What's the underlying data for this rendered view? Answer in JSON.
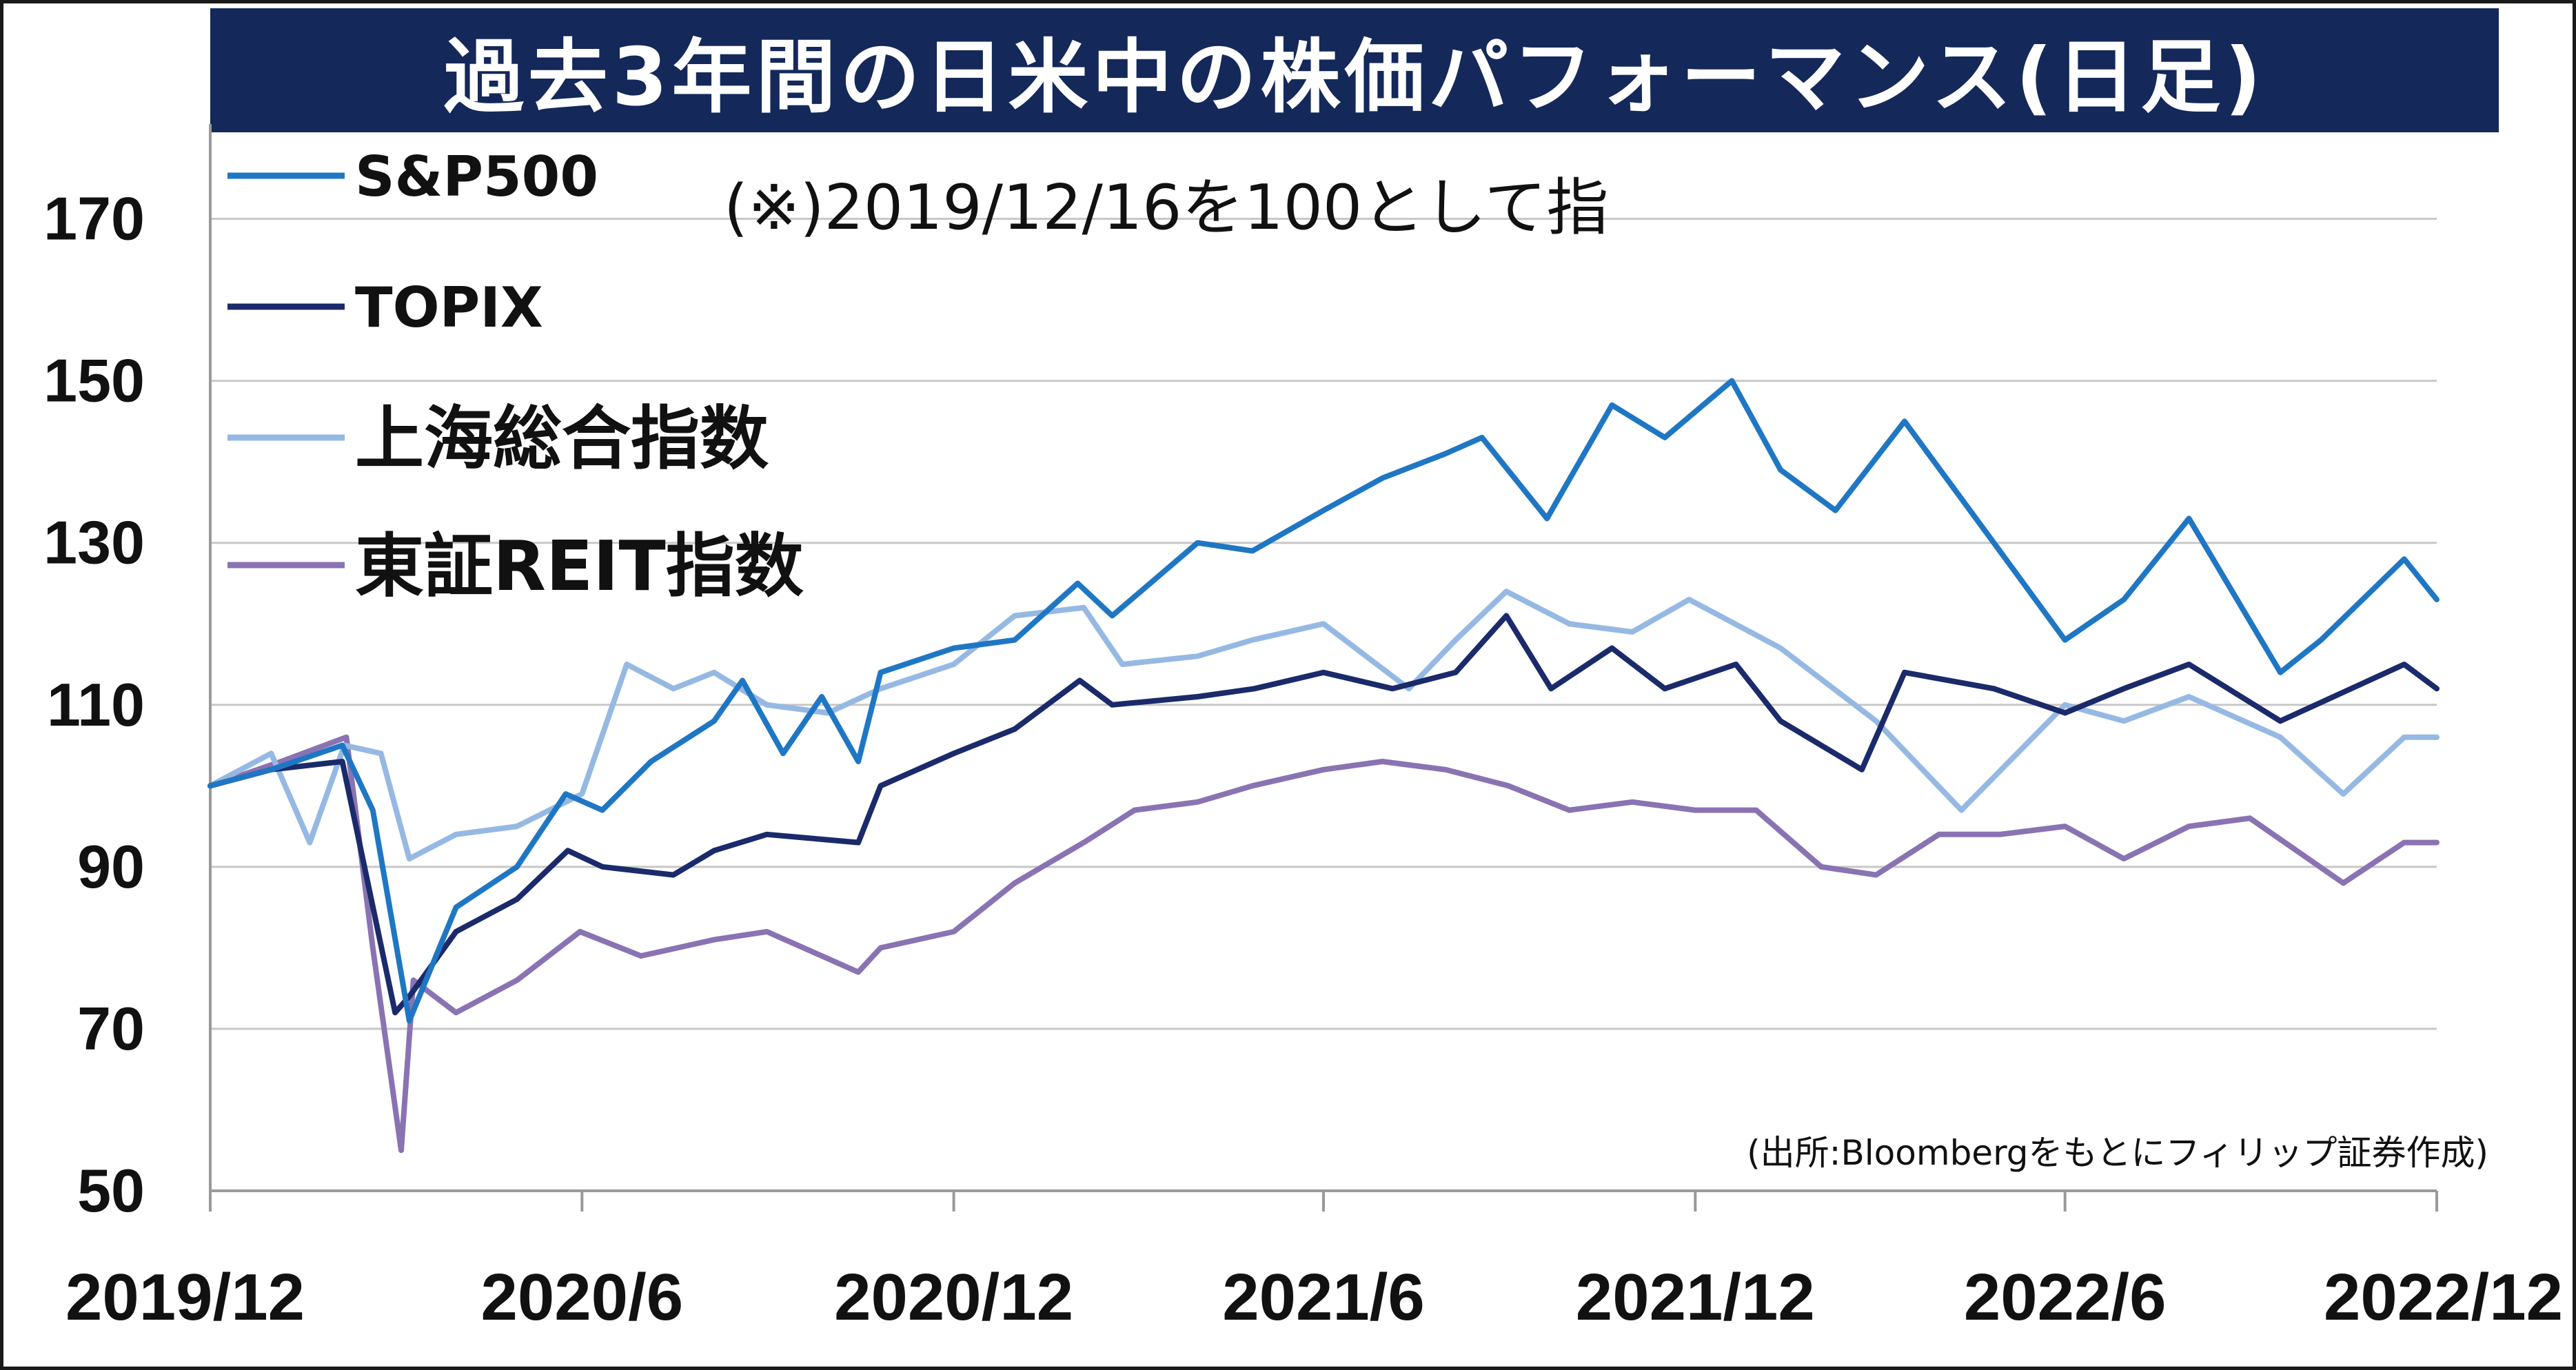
{
  "chart_data": {
    "type": "line",
    "title": "過去3年間の日米中の株価パフォーマンス(日足)",
    "annotation": "(※)2019/12/16を100として指",
    "source": "(出所:Bloombergをもとにフィリップ証券作成)",
    "xlabel": "",
    "ylabel": "",
    "ylim": [
      50,
      180
    ],
    "yticks": [
      "170",
      "150",
      "130",
      "110",
      "90",
      "70",
      "50"
    ],
    "ytick_values": [
      170,
      150,
      130,
      110,
      90,
      70,
      50
    ],
    "xticks": [
      "2019/12",
      "2020/6",
      "2020/12",
      "2021/6",
      "2021/12",
      "2022/6",
      "2022/12"
    ],
    "xtick_values": [
      "2019-12-16",
      "2020-06-16",
      "2020-12-16",
      "2021-06-16",
      "2021-12-16",
      "2022-06-16",
      "2022-12-16"
    ],
    "xlim": [
      "2019-12-16",
      "2022-12-16"
    ],
    "grid": true,
    "legend": "top-left",
    "series": [
      {
        "name": "S&P500",
        "color": "#1f77c4",
        "x": [
          "2019-12-16",
          "2020-01-15",
          "2020-02-19",
          "2020-03-05",
          "2020-03-23",
          "2020-04-15",
          "2020-05-15",
          "2020-06-08",
          "2020-06-26",
          "2020-07-20",
          "2020-08-20",
          "2020-09-03",
          "2020-09-23",
          "2020-10-12",
          "2020-10-30",
          "2020-11-10",
          "2020-12-16",
          "2021-01-15",
          "2021-02-15",
          "2021-03-04",
          "2021-04-15",
          "2021-05-12",
          "2021-06-16",
          "2021-07-15",
          "2021-08-15",
          "2021-09-02",
          "2021-10-04",
          "2021-11-05",
          "2021-12-01",
          "2022-01-03",
          "2022-01-27",
          "2022-02-23",
          "2022-03-29",
          "2022-05-12",
          "2022-06-16",
          "2022-07-15",
          "2022-08-16",
          "2022-09-30",
          "2022-10-20",
          "2022-11-30",
          "2022-12-16"
        ],
        "y": [
          100,
          102,
          105,
          97,
          71,
          85,
          90,
          99,
          97,
          103,
          108,
          113,
          104,
          111,
          103,
          114,
          117,
          118,
          125,
          121,
          130,
          129,
          134,
          138,
          141,
          143,
          133,
          147,
          143,
          150,
          139,
          134,
          145,
          130,
          118,
          123,
          133,
          114,
          118,
          128,
          123
        ]
      },
      {
        "name": "TOPIX",
        "color": "#1b2a6b",
        "x": [
          "2019-12-16",
          "2020-01-15",
          "2020-02-19",
          "2020-03-16",
          "2020-03-23",
          "2020-04-15",
          "2020-05-15",
          "2020-06-09",
          "2020-06-26",
          "2020-07-31",
          "2020-08-20",
          "2020-09-15",
          "2020-10-30",
          "2020-11-10",
          "2020-12-16",
          "2021-01-15",
          "2021-02-16",
          "2021-03-04",
          "2021-04-15",
          "2021-05-13",
          "2021-06-16",
          "2021-07-20",
          "2021-08-20",
          "2021-09-14",
          "2021-10-06",
          "2021-11-05",
          "2021-12-01",
          "2022-01-05",
          "2022-01-27",
          "2022-03-08",
          "2022-03-29",
          "2022-05-12",
          "2022-06-16",
          "2022-07-15",
          "2022-08-16",
          "2022-09-30",
          "2022-11-30",
          "2022-12-16"
        ],
        "y": [
          100,
          102,
          103,
          72,
          74,
          82,
          86,
          92,
          90,
          89,
          92,
          94,
          93,
          100,
          104,
          107,
          113,
          110,
          111,
          112,
          114,
          112,
          114,
          121,
          112,
          117,
          112,
          115,
          108,
          102,
          114,
          112,
          109,
          112,
          115,
          108,
          115,
          112
        ]
      },
      {
        "name": "上海総合指数",
        "color": "#96b9e3",
        "x": [
          "2019-12-16",
          "2020-01-15",
          "2020-02-03",
          "2020-02-20",
          "2020-03-09",
          "2020-03-23",
          "2020-04-15",
          "2020-05-15",
          "2020-06-16",
          "2020-07-08",
          "2020-07-31",
          "2020-08-20",
          "2020-09-15",
          "2020-10-15",
          "2020-11-10",
          "2020-12-16",
          "2021-01-15",
          "2021-02-18",
          "2021-03-09",
          "2021-04-15",
          "2021-05-12",
          "2021-06-16",
          "2021-07-28",
          "2021-08-20",
          "2021-09-14",
          "2021-10-15",
          "2021-11-15",
          "2021-12-13",
          "2022-01-27",
          "2022-03-15",
          "2022-04-26",
          "2022-06-16",
          "2022-07-15",
          "2022-08-16",
          "2022-09-30",
          "2022-10-31",
          "2022-11-30",
          "2022-12-16"
        ],
        "y": [
          100,
          104,
          93,
          105,
          104,
          91,
          94,
          95,
          99,
          115,
          112,
          114,
          110,
          109,
          112,
          115,
          121,
          122,
          115,
          116,
          118,
          120,
          112,
          118,
          124,
          120,
          119,
          123,
          117,
          108,
          97,
          110,
          108,
          111,
          106,
          99,
          106,
          106
        ]
      },
      {
        "name": "東証REIT指数",
        "color": "#8a73b2",
        "x": [
          "2019-12-16",
          "2020-01-20",
          "2020-02-21",
          "2020-03-05",
          "2020-03-19",
          "2020-03-25",
          "2020-04-15",
          "2020-05-15",
          "2020-06-15",
          "2020-07-15",
          "2020-08-20",
          "2020-09-15",
          "2020-10-30",
          "2020-11-10",
          "2020-12-16",
          "2021-01-15",
          "2021-02-18",
          "2021-03-15",
          "2021-04-15",
          "2021-05-12",
          "2021-06-16",
          "2021-07-15",
          "2021-08-15",
          "2021-09-15",
          "2021-10-15",
          "2021-11-15",
          "2021-12-16",
          "2022-01-15",
          "2022-02-16",
          "2022-03-15",
          "2022-04-15",
          "2022-05-15",
          "2022-06-16",
          "2022-07-15",
          "2022-08-16",
          "2022-09-15",
          "2022-10-31",
          "2022-11-30",
          "2022-12-16"
        ],
        "y": [
          100,
          103,
          106,
          80,
          55,
          76,
          72,
          76,
          82,
          79,
          81,
          82,
          77,
          80,
          82,
          88,
          93,
          97,
          98,
          100,
          102,
          103,
          102,
          100,
          97,
          98,
          97,
          97,
          90,
          89,
          94,
          94,
          95,
          91,
          95,
          96,
          88,
          93,
          93
        ]
      }
    ]
  }
}
